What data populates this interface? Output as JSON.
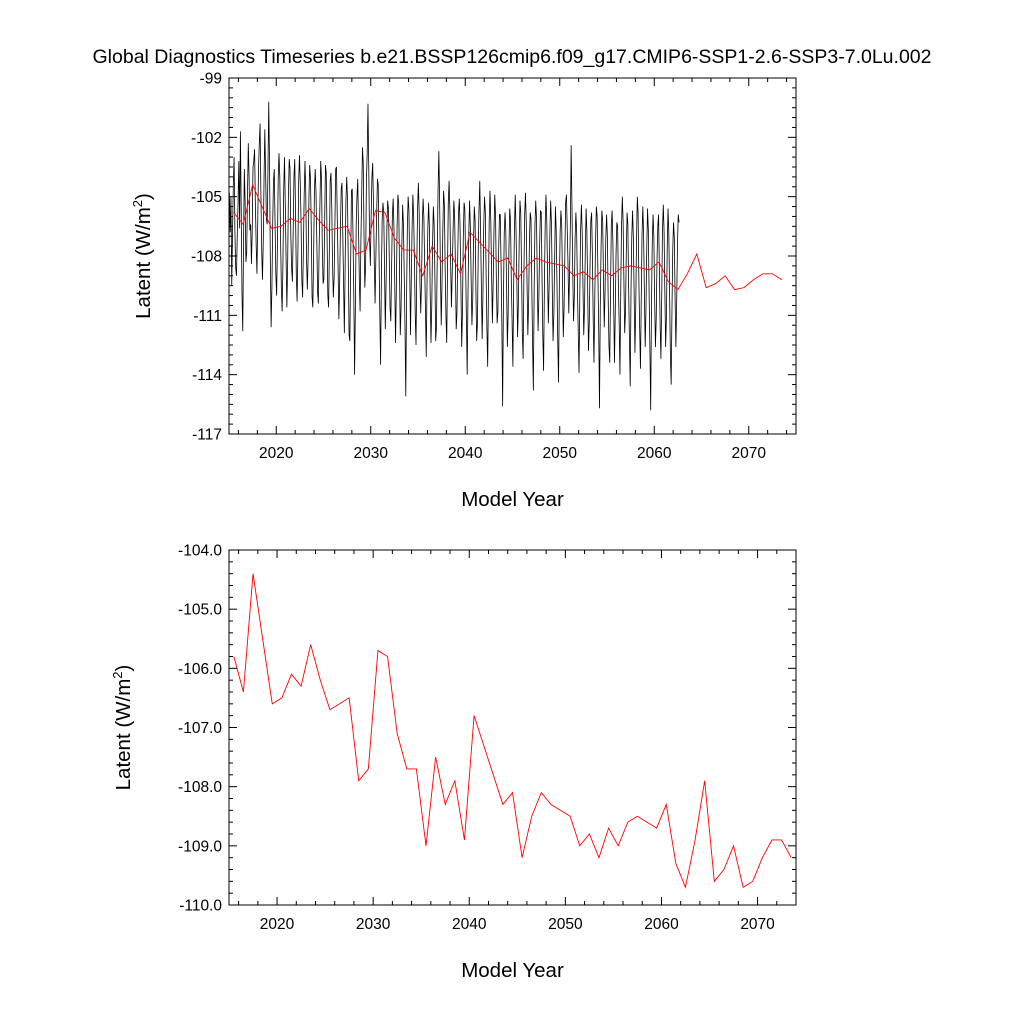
{
  "title": "Global Diagnostics Timeseries b.e21.BSSP126cmip6.f09_g17.CMIP6-SSP1-2.6-SSP3-7.0Lu.002",
  "colors": {
    "monthly": "#000000",
    "annual": "#ff0000"
  },
  "chart_data": [
    {
      "type": "line",
      "xlabel": "Model Year",
      "ylabel": "Latent (W/m²)",
      "xlim": [
        2015,
        2075
      ],
      "ylim": [
        -117,
        -99
      ],
      "x_ticks": [
        2020,
        2030,
        2040,
        2050,
        2060,
        2070
      ],
      "y_ticks": [
        -117,
        -114,
        -111,
        -108,
        -105,
        -102,
        -99
      ],
      "y_tick_labels": [
        "-117",
        "-114",
        "-111",
        "-108",
        "-105",
        "-102",
        "-99"
      ],
      "grid": false,
      "series": [
        {
          "kind": "monthly",
          "x_start": 2015.04,
          "x_step": 0.0833333,
          "values": [
            -104.8,
            -106.8,
            -105.0,
            -109.5,
            -106.8,
            -104.4,
            -103.0,
            -106.7,
            -108.6,
            -109.0,
            -107.0,
            -105.3,
            -103.2,
            -106.6,
            -101.7,
            -105.5,
            -109.9,
            -111.8,
            -107.2,
            -103.6,
            -105.3,
            -108.3,
            -107.8,
            -104.9,
            -102.3,
            -104.0,
            -106.7,
            -106.4,
            -108.4,
            -106.7,
            -103.5,
            -103.2,
            -102.6,
            -105.3,
            -107.4,
            -108.9,
            -106.3,
            -103.6,
            -102.3,
            -101.3,
            -104.8,
            -107.6,
            -109.2,
            -107.4,
            -104.1,
            -101.6,
            -103.8,
            -106.1,
            -106.4,
            -103.6,
            -100.2,
            -103.4,
            -108.2,
            -111.6,
            -109.6,
            -106.4,
            -104.2,
            -103.6,
            -106.3,
            -108.9,
            -110.0,
            -107.5,
            -104.1,
            -102.8,
            -104.0,
            -107.1,
            -109.6,
            -110.8,
            -108.4,
            -104.6,
            -103.0,
            -105.4,
            -108.1,
            -110.6,
            -108.4,
            -104.8,
            -103.1,
            -103.6,
            -106.9,
            -108.6,
            -109.3,
            -106.8,
            -104.0,
            -103.1,
            -105.8,
            -109.0,
            -110.3,
            -107.8,
            -104.2,
            -102.9,
            -104.3,
            -106.2,
            -109.2,
            -110.1,
            -107.6,
            -104.9,
            -103.2,
            -104.8,
            -108.2,
            -109.7,
            -108.1,
            -105.1,
            -103.4,
            -104.1,
            -106.6,
            -110.1,
            -110.6,
            -107.8,
            -104.7,
            -103.6,
            -104.8,
            -107.2,
            -109.8,
            -110.4,
            -107.5,
            -105.3,
            -103.2,
            -104.1,
            -107.5,
            -109.4,
            -109.2,
            -106.2,
            -103.4,
            -103.8,
            -106.9,
            -110.0,
            -110.6,
            -107.6,
            -104.2,
            -103.8,
            -105.5,
            -108.4,
            -110.1,
            -109.1,
            -106.4,
            -103.6,
            -103.5,
            -106.1,
            -108.4,
            -111.2,
            -109.5,
            -106.6,
            -104.6,
            -104.3,
            -106.8,
            -109.4,
            -111.9,
            -108.5,
            -105.2,
            -104.0,
            -105.1,
            -108.4,
            -112.0,
            -112.3,
            -108.4,
            -104.7,
            -104.6,
            -107.0,
            -110.0,
            -114.0,
            -110.6,
            -106.5,
            -105.0,
            -104.1,
            -106.6,
            -109.2,
            -110.8,
            -107.3,
            -104.9,
            -102.5,
            -103.3,
            -107.1,
            -109.6,
            -108.5,
            -104.2,
            -102.8,
            -100.3,
            -103.6,
            -107.1,
            -108.5,
            -106.1,
            -104.0,
            -103.3,
            -105.4,
            -108.3,
            -110.4,
            -108.1,
            -105.9,
            -104.1,
            -104.4,
            -107.8,
            -110.8,
            -113.5,
            -109.2,
            -106.2,
            -105.3,
            -105.8,
            -108.6,
            -111.7,
            -109.4,
            -106.6,
            -105.2,
            -105.6,
            -108.0,
            -110.6,
            -111.3,
            -108.6,
            -105.9,
            -105.1,
            -106.6,
            -109.4,
            -112.4,
            -109.7,
            -106.4,
            -104.9,
            -105.3,
            -108.6,
            -112.0,
            -110.7,
            -107.5,
            -105.4,
            -106.4,
            -108.9,
            -111.6,
            -115.1,
            -110.1,
            -106.6,
            -105.0,
            -105.7,
            -108.7,
            -112.0,
            -109.2,
            -106.6,
            -104.9,
            -106.0,
            -108.2,
            -111.0,
            -112.5,
            -108.4,
            -105.6,
            -104.3,
            -105.8,
            -109.3,
            -110.9,
            -109.3,
            -106.3,
            -105.1,
            -106.1,
            -108.5,
            -110.8,
            -113.1,
            -109.3,
            -106.6,
            -105.3,
            -106.6,
            -109.9,
            -112.4,
            -110.5,
            -107.4,
            -105.5,
            -106.4,
            -109.1,
            -112.3,
            -111.6,
            -107.8,
            -104.6,
            -102.7,
            -105.2,
            -108.8,
            -111.5,
            -109.4,
            -106.8,
            -104.7,
            -105.4,
            -108.6,
            -111.0,
            -112.4,
            -108.6,
            -105.3,
            -104.2,
            -105.7,
            -108.5,
            -110.6,
            -108.8,
            -106.8,
            -105.2,
            -105.9,
            -108.4,
            -111.7,
            -110.9,
            -107.9,
            -105.8,
            -105.1,
            -106.7,
            -109.5,
            -112.6,
            -110.8,
            -107.1,
            -105.3,
            -105.6,
            -108.5,
            -111.2,
            -114.0,
            -109.9,
            -106.9,
            -105.2,
            -106.5,
            -109.2,
            -111.5,
            -110.2,
            -107.3,
            -105.5,
            -106.2,
            -109.6,
            -112.3,
            -111.4,
            -107.8,
            -105.6,
            -104.2,
            -106.8,
            -109.5,
            -112.2,
            -109.9,
            -106.5,
            -105.0,
            -105.8,
            -108.9,
            -111.6,
            -113.6,
            -109.6,
            -106.1,
            -104.7,
            -106.3,
            -109.0,
            -111.4,
            -109.3,
            -106.7,
            -104.9,
            -106.0,
            -109.1,
            -111.4,
            -110.8,
            -107.6,
            -105.9,
            -105.9,
            -108.4,
            -111.4,
            -115.6,
            -110.2,
            -106.9,
            -105.8,
            -106.7,
            -109.5,
            -112.6,
            -110.9,
            -107.6,
            -105.6,
            -106.2,
            -109.2,
            -111.3,
            -113.6,
            -109.4,
            -106.6,
            -104.9,
            -106.7,
            -109.2,
            -112.1,
            -110.4,
            -107.3,
            -105.2,
            -105.8,
            -108.7,
            -111.9,
            -113.2,
            -109.0,
            -105.9,
            -104.8,
            -106.3,
            -109.4,
            -112.0,
            -110.4,
            -107.3,
            -105.8,
            -106.1,
            -109.4,
            -112.4,
            -114.8,
            -109.8,
            -106.5,
            -105.2,
            -106.1,
            -109.2,
            -111.8,
            -110.1,
            -107.4,
            -105.7,
            -105.8,
            -109.1,
            -112.0,
            -113.8,
            -109.6,
            -106.5,
            -104.9,
            -106.1,
            -108.8,
            -111.4,
            -109.6,
            -106.8,
            -105.2,
            -106.4,
            -109.5,
            -112.3,
            -111.0,
            -108.3,
            -105.5,
            -106.7,
            -109.4,
            -112.4,
            -114.4,
            -109.6,
            -106.8,
            -105.7,
            -106.4,
            -109.2,
            -112.1,
            -110.6,
            -107.9,
            -105.3,
            -104.9,
            -106.6,
            -108.4,
            -110.9,
            -108.8,
            -106.4,
            -102.4,
            -105.4,
            -108.8,
            -111.3,
            -110.1,
            -107.1,
            -105.8,
            -106.8,
            -109.6,
            -111.9,
            -113.9,
            -109.9,
            -106.7,
            -105.4,
            -106.8,
            -109.5,
            -112.0,
            -110.6,
            -107.6,
            -105.6,
            -106.8,
            -109.8,
            -112.8,
            -111.4,
            -108.4,
            -106.2,
            -105.8,
            -108.1,
            -111.2,
            -113.4,
            -110.2,
            -107.2,
            -105.5,
            -106.0,
            -109.0,
            -111.8,
            -115.7,
            -110.6,
            -107.5,
            -105.7,
            -106.2,
            -108.9,
            -111.6,
            -109.9,
            -107.1,
            -105.9,
            -107.0,
            -110.1,
            -112.5,
            -113.4,
            -109.7,
            -106.4,
            -105.7,
            -107.3,
            -110.4,
            -113.4,
            -110.9,
            -107.9,
            -106.3,
            -106.5,
            -109.5,
            -111.5,
            -114.0,
            -109.6,
            -106.4,
            -105.0,
            -106.3,
            -109.3,
            -111.9,
            -110.8,
            -107.9,
            -105.8,
            -106.4,
            -109.6,
            -112.3,
            -114.6,
            -109.8,
            -107.0,
            -105.7,
            -107.1,
            -110.0,
            -112.9,
            -110.6,
            -107.2,
            -105.0,
            -105.8,
            -109.3,
            -111.7,
            -113.7,
            -110.3,
            -106.9,
            -105.5,
            -106.9,
            -109.9,
            -112.6,
            -110.7,
            -107.6,
            -105.6,
            -106.7,
            -109.9,
            -112.7,
            -115.8,
            -110.5,
            -107.3,
            -105.9,
            -107.0,
            -110.1,
            -112.6,
            -111.2,
            -108.3,
            -106.5,
            -105.9,
            -108.6,
            -111.5,
            -113.2,
            -110.0,
            -106.7,
            -105.4,
            -106.8,
            -109.9,
            -112.6,
            -111.0,
            -107.6,
            -105.6,
            -106.8,
            -109.9,
            -113.0,
            -114.5,
            -110.8,
            -107.7,
            -106.3,
            -107.1,
            -110.2,
            -112.6,
            -110.3,
            -107.4,
            -105.9,
            -106.3
          ]
        },
        {
          "kind": "annual",
          "x": [
            2015.5,
            2016.5,
            2017.5,
            2018.5,
            2019.5,
            2020.5,
            2021.5,
            2022.5,
            2023.5,
            2024.5,
            2025.5,
            2026.5,
            2027.5,
            2028.5,
            2029.5,
            2030.5,
            2031.5,
            2032.5,
            2033.5,
            2034.5,
            2035.5,
            2036.5,
            2037.5,
            2038.5,
            2039.5,
            2040.5,
            2041.5,
            2042.5,
            2043.5,
            2044.5,
            2045.5,
            2046.5,
            2047.5,
            2048.5,
            2049.5,
            2050.5,
            2051.5,
            2052.5,
            2053.5,
            2054.5,
            2055.5,
            2056.5,
            2057.5,
            2058.5,
            2059.5,
            2060.5,
            2061.5,
            2062.5,
            2063.5,
            2064.5,
            2065.5,
            2066.5,
            2067.5,
            2068.5,
            2069.5,
            2070.5,
            2071.5,
            2072.5,
            2073.5
          ],
          "values": [
            -105.8,
            -106.4,
            -104.4,
            -105.5,
            -106.6,
            -106.5,
            -106.1,
            -106.3,
            -105.6,
            -106.2,
            -106.7,
            -106.6,
            -106.5,
            -107.9,
            -107.7,
            -105.7,
            -105.8,
            -107.1,
            -107.7,
            -107.7,
            -109.0,
            -107.5,
            -108.3,
            -107.9,
            -108.9,
            -106.8,
            -107.3,
            -107.8,
            -108.3,
            -108.1,
            -109.2,
            -108.5,
            -108.1,
            -108.3,
            -108.4,
            -108.5,
            -109.0,
            -108.8,
            -109.2,
            -108.7,
            -109.0,
            -108.6,
            -108.5,
            -108.6,
            -108.7,
            -108.3,
            -109.3,
            -109.7,
            -108.9,
            -107.9,
            -109.6,
            -109.4,
            -109.0,
            -109.7,
            -109.6,
            -109.2,
            -108.9,
            -108.9,
            -109.2
          ]
        }
      ]
    },
    {
      "type": "line",
      "xlabel": "Model Year",
      "ylabel": "Latent (W/m²)",
      "xlim": [
        2015,
        2074
      ],
      "ylim": [
        -110,
        -104
      ],
      "x_ticks": [
        2020,
        2030,
        2040,
        2050,
        2060,
        2070
      ],
      "y_ticks": [
        -110,
        -109,
        -108,
        -107,
        -106,
        -105,
        -104
      ],
      "y_tick_labels": [
        "-110.0",
        "-109.0",
        "-108.0",
        "-107.0",
        "-106.0",
        "-105.0",
        "-104.0"
      ],
      "grid": false,
      "series": [
        {
          "kind": "annual",
          "x": [
            2015.5,
            2016.5,
            2017.5,
            2018.5,
            2019.5,
            2020.5,
            2021.5,
            2022.5,
            2023.5,
            2024.5,
            2025.5,
            2026.5,
            2027.5,
            2028.5,
            2029.5,
            2030.5,
            2031.5,
            2032.5,
            2033.5,
            2034.5,
            2035.5,
            2036.5,
            2037.5,
            2038.5,
            2039.5,
            2040.5,
            2041.5,
            2042.5,
            2043.5,
            2044.5,
            2045.5,
            2046.5,
            2047.5,
            2048.5,
            2049.5,
            2050.5,
            2051.5,
            2052.5,
            2053.5,
            2054.5,
            2055.5,
            2056.5,
            2057.5,
            2058.5,
            2059.5,
            2060.5,
            2061.5,
            2062.5,
            2063.5,
            2064.5,
            2065.5,
            2066.5,
            2067.5,
            2068.5,
            2069.5,
            2070.5,
            2071.5,
            2072.5,
            2073.5
          ],
          "values": [
            -105.8,
            -106.4,
            -104.4,
            -105.5,
            -106.6,
            -106.5,
            -106.1,
            -106.3,
            -105.6,
            -106.2,
            -106.7,
            -106.6,
            -106.5,
            -107.9,
            -107.7,
            -105.7,
            -105.8,
            -107.1,
            -107.7,
            -107.7,
            -109.0,
            -107.5,
            -108.3,
            -107.9,
            -108.9,
            -106.8,
            -107.3,
            -107.8,
            -108.3,
            -108.1,
            -109.2,
            -108.5,
            -108.1,
            -108.3,
            -108.4,
            -108.5,
            -109.0,
            -108.8,
            -109.2,
            -108.7,
            -109.0,
            -108.6,
            -108.5,
            -108.6,
            -108.7,
            -108.3,
            -109.3,
            -109.7,
            -108.9,
            -107.9,
            -109.6,
            -109.4,
            -109.0,
            -109.7,
            -109.6,
            -109.2,
            -108.9,
            -108.9,
            -109.2
          ]
        }
      ]
    }
  ]
}
